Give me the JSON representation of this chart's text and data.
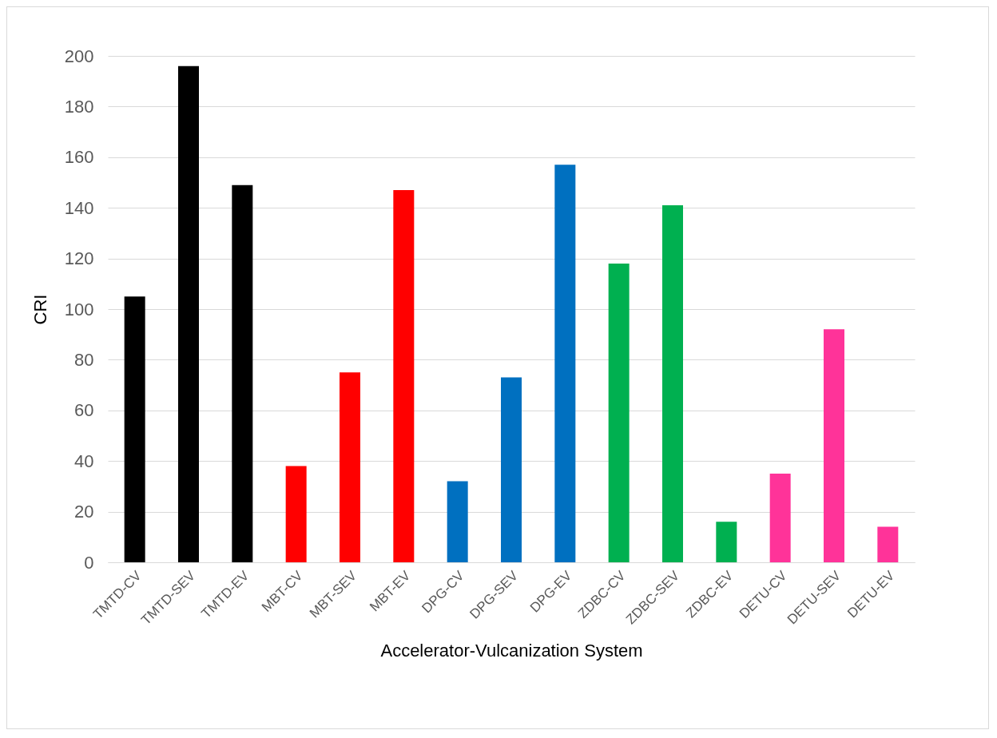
{
  "chart_data": {
    "type": "bar",
    "xlabel": "Accelerator-Vulcanization System",
    "ylabel": "CRI",
    "categories": [
      "TMTD-CV",
      "TMTD-SEV",
      "TMTD-EV",
      "MBT-CV",
      "MBT-SEV",
      "MBT-EV",
      "DPG-CV",
      "DPG-SEV",
      "DPG-EV",
      "ZDBC-CV",
      "ZDBC-SEV",
      "ZDBC-EV",
      "DETU-CV",
      "DETU-SEV",
      "DETU-EV"
    ],
    "values": [
      105,
      196,
      149,
      38,
      75,
      147,
      32,
      73,
      157,
      118,
      141,
      16,
      35,
      92,
      14
    ],
    "colors": [
      "#000000",
      "#000000",
      "#000000",
      "#ff0000",
      "#ff0000",
      "#ff0000",
      "#0070c0",
      "#0070c0",
      "#0070c0",
      "#00b050",
      "#00b050",
      "#00b050",
      "#ff3399",
      "#ff3399",
      "#ff3399"
    ],
    "ylim": [
      0,
      200
    ],
    "yticks": [
      0,
      20,
      40,
      60,
      80,
      100,
      120,
      140,
      160,
      180,
      200
    ],
    "grid": "y",
    "legend": false
  }
}
